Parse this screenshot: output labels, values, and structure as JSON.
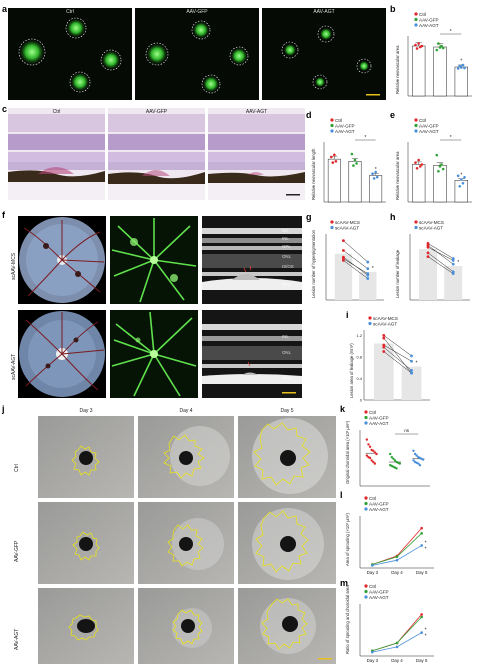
{
  "panels": {
    "a": {
      "label": "a",
      "captions": [
        "Ctrl",
        "AAV-GFP",
        "AAV-AGT"
      ]
    },
    "b": {
      "label": "b",
      "legend": [
        "Ctrl",
        "AAV-GFP",
        "AAV-AGT"
      ],
      "ylabel": "Relative neovascular area",
      "significance": [
        "*",
        "*"
      ]
    },
    "c": {
      "label": "c",
      "captions": [
        "Ctrl",
        "AAV-GFP",
        "AAV-AGT"
      ]
    },
    "d": {
      "label": "d",
      "legend": [
        "Ctrl",
        "AAV-GFP",
        "AAV-AGT"
      ],
      "ylabel": "Relative neovascular length",
      "significance": [
        "*",
        "*"
      ]
    },
    "e": {
      "label": "e",
      "legend": [
        "Ctrl",
        "AAV-GFP",
        "AAV-AGT"
      ],
      "ylabel": "Relative neovascular area",
      "significance": [
        "*",
        "*"
      ]
    },
    "f": {
      "label": "f",
      "row_labels": [
        "scAAV-MCS",
        "scAAV-AGT"
      ],
      "layers_top": [
        "GC",
        "INL",
        "OPL",
        "ONL",
        "IS/OS",
        "RPE"
      ],
      "layers_bottom": [
        "INL",
        "ONL",
        "RPE"
      ]
    },
    "g": {
      "label": "g",
      "legend": [
        "scAAV-MCS",
        "scAAV-AGT"
      ],
      "ylabel": "Lesion number of hyperpigmentation",
      "significance": "*"
    },
    "h": {
      "label": "h",
      "legend": [
        "scAAV-MCS",
        "scAAV-AGT"
      ],
      "ylabel": "Lesion number of leakage",
      "significance": "*"
    },
    "i": {
      "label": "i",
      "legend": [
        "scAAV-MCS",
        "scAAV-AGT"
      ],
      "ylabel": "Lesion area of leakage (mm²)",
      "yticks": [
        "1.2",
        "0.8",
        "0.4",
        "0"
      ],
      "significance": "*"
    },
    "j": {
      "label": "j",
      "columns": [
        "Day 3",
        "Day 4",
        "Day 5"
      ],
      "row_labels": [
        "Ctrl",
        "AAV-GFP",
        "AAV-AGT"
      ]
    },
    "k": {
      "label": "k",
      "legend": [
        "Ctrl",
        "AAV-GFP",
        "AAV-AGT"
      ],
      "ylabel": "Original choroidal area (×10³ μm²)",
      "significance": "ns"
    },
    "l": {
      "label": "l",
      "legend": [
        "Ctrl",
        "AAV-GFP",
        "AAV-AGT"
      ],
      "ylabel": "Area of sprouting (×10³ μm²)",
      "xticks": [
        "Day 3",
        "Day 4",
        "Day 5"
      ],
      "significance": [
        "*",
        "*"
      ]
    },
    "m": {
      "label": "m",
      "legend": [
        "Ctrl",
        "AAV-GFP",
        "AAV-AGT"
      ],
      "ylabel": "Ratio of sprouting and choroidal area",
      "xticks": [
        "Day 3",
        "Day 4",
        "Day 5"
      ],
      "significance": [
        "*",
        "*"
      ]
    }
  },
  "colors": {
    "ctrl": "#e0262b",
    "gfp": "#2fa336",
    "agt": "#4a8fd9",
    "yellow_outline": "#e8e21a"
  },
  "chart_data": [
    {
      "panel": "b",
      "type": "bar",
      "categories": [
        "Ctrl",
        "AAV-GFP",
        "AAV-AGT"
      ],
      "values": [
        1.0,
        0.98,
        0.58
      ],
      "points": [
        [
          1.02,
          0.95,
          1.05,
          0.98,
          1.0
        ],
        [
          0.92,
          1.05,
          0.97,
          1.0,
          0.96
        ],
        [
          0.55,
          0.6,
          0.57,
          0.62,
          0.56
        ]
      ],
      "ylim": [
        0,
        1.2
      ]
    },
    {
      "panel": "d",
      "type": "bar",
      "categories": [
        "Ctrl",
        "AAV-GFP",
        "AAV-AGT"
      ],
      "values": [
        1.0,
        0.95,
        0.62
      ],
      "points": [
        [
          1.05,
          0.92,
          1.1,
          0.95
        ],
        [
          1.12,
          0.85,
          0.98,
          0.9
        ],
        [
          0.66,
          0.55,
          0.7,
          0.58
        ]
      ],
      "ylim": [
        0,
        1.4
      ]
    },
    {
      "panel": "e",
      "type": "bar",
      "categories": [
        "Ctrl",
        "AAV-GFP",
        "AAV-AGT"
      ],
      "values": [
        1.0,
        0.98,
        0.58
      ],
      "points": [
        [
          1.05,
          0.9,
          1.12,
          0.95,
          1.0
        ],
        [
          1.25,
          0.82,
          0.95,
          1.0,
          0.88
        ],
        [
          0.7,
          0.42,
          0.6,
          0.5,
          0.66
        ]
      ],
      "ylim": [
        0,
        1.6
      ]
    },
    {
      "panel": "g",
      "type": "line",
      "categories": [
        "scAAV-MCS",
        "scAAV-AGT"
      ],
      "bar_means": [
        5.6,
        3.4
      ],
      "pairs": [
        [
          7.2,
          4.6
        ],
        [
          6.0,
          3.8
        ],
        [
          5.2,
          3.0
        ],
        [
          4.8,
          2.6
        ],
        [
          5.0,
          3.2
        ]
      ],
      "ylim": [
        0,
        8
      ]
    },
    {
      "panel": "h",
      "type": "line",
      "categories": [
        "scAAV-MCS",
        "scAAV-AGT"
      ],
      "bar_means": [
        5.4,
        3.6
      ],
      "pairs": [
        [
          6.0,
          4.4
        ],
        [
          5.8,
          3.8
        ],
        [
          5.6,
          4.2
        ],
        [
          5.0,
          3.0
        ],
        [
          4.6,
          2.8
        ]
      ],
      "ylim": [
        0,
        7
      ]
    },
    {
      "panel": "i",
      "type": "line",
      "categories": [
        "scAAV-MCS",
        "scAAV-AGT"
      ],
      "bar_means": [
        1.05,
        0.62
      ],
      "pairs": [
        [
          1.2,
          0.82
        ],
        [
          1.15,
          0.5
        ],
        [
          1.02,
          0.72
        ],
        [
          0.98,
          0.55
        ],
        [
          0.9,
          0.5
        ]
      ],
      "ylim": [
        0,
        1.3
      ]
    },
    {
      "panel": "k",
      "type": "bar",
      "categories": [
        "Ctrl",
        "AAV-GFP",
        "AAV-AGT"
      ],
      "values": [
        4.1,
        3.0,
        3.4
      ],
      "points": [
        [
          5.8,
          5.2,
          4.9,
          4.5,
          4.4,
          4.2,
          4.0,
          3.8,
          3.6,
          3.5,
          3.2,
          3.0,
          2.8
        ],
        [
          4.0,
          3.6,
          3.4,
          3.2,
          3.0,
          2.9,
          2.8,
          2.6,
          2.5,
          2.4,
          2.3,
          2.2
        ],
        [
          4.4,
          4.0,
          3.8,
          3.6,
          3.5,
          3.4,
          3.3,
          3.2,
          3.0,
          2.9,
          2.8,
          2.6
        ]
      ],
      "ylim": [
        0,
        7
      ]
    },
    {
      "panel": "l",
      "type": "line",
      "x": [
        "Day 3",
        "Day 4",
        "Day 5"
      ],
      "series": [
        {
          "name": "Ctrl",
          "values": [
            4,
            14,
            46
          ]
        },
        {
          "name": "AAV-GFP",
          "values": [
            4,
            13,
            40
          ]
        },
        {
          "name": "AAV-AGT",
          "values": [
            3,
            9,
            26
          ]
        }
      ],
      "ylim": [
        0,
        60
      ]
    },
    {
      "panel": "m",
      "type": "line",
      "x": [
        "Day 3",
        "Day 4",
        "Day 5"
      ],
      "series": [
        {
          "name": "Ctrl",
          "values": [
            2,
            5,
            16
          ]
        },
        {
          "name": "AAV-GFP",
          "values": [
            2,
            5,
            15
          ]
        },
        {
          "name": "AAV-AGT",
          "values": [
            1.5,
            3.5,
            9
          ]
        }
      ],
      "ylim": [
        0,
        20
      ]
    }
  ]
}
